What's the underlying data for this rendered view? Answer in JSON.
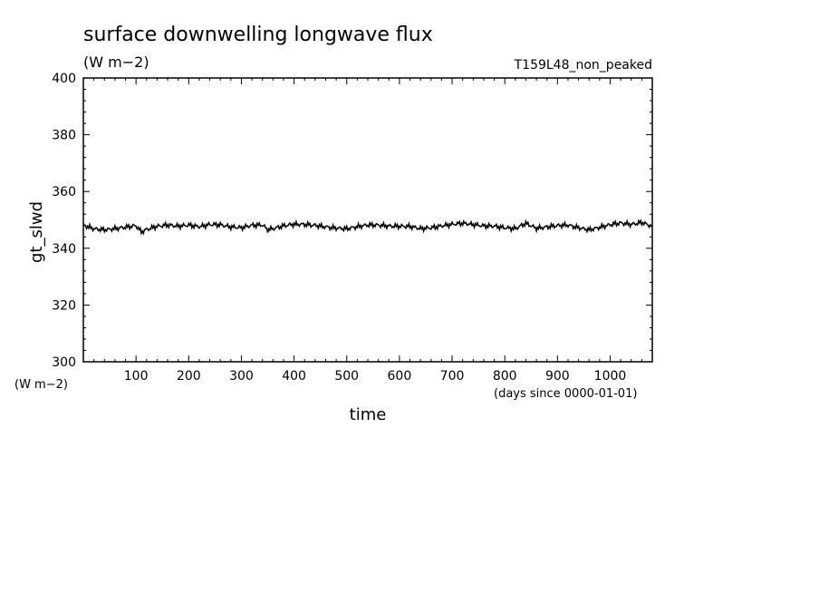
{
  "chart_data": {
    "type": "line",
    "title": "surface downwelling longwave flux",
    "subtitle": "(W m−2)",
    "run_label": "T159L48_non_peaked",
    "xlabel": "time",
    "xunits": "(days since 0000-01-01)",
    "ylabel": "gt_slwd",
    "yunits": "(W m−2)",
    "xlim": [
      0,
      1080
    ],
    "ylim": [
      300,
      400
    ],
    "xticks": [
      100,
      200,
      300,
      400,
      500,
      600,
      700,
      800,
      900,
      1000
    ],
    "yticks": [
      300,
      320,
      340,
      360,
      380,
      400
    ],
    "grid": false,
    "series": [
      {
        "x": [
          0,
          20,
          40,
          60,
          80,
          100,
          110,
          120,
          140,
          160,
          180,
          200,
          220,
          240,
          260,
          280,
          300,
          320,
          340,
          350,
          360,
          380,
          400,
          420,
          440,
          460,
          480,
          500,
          520,
          540,
          560,
          580,
          600,
          620,
          640,
          660,
          680,
          700,
          720,
          740,
          760,
          780,
          800,
          820,
          840,
          860,
          880,
          900,
          920,
          940,
          960,
          980,
          1000,
          1020,
          1040,
          1060,
          1080
        ],
        "y": [
          348,
          347,
          346.8,
          347.2,
          347.5,
          347.8,
          345.5,
          346.3,
          347.5,
          348.2,
          348,
          348.5,
          347.8,
          348.3,
          348,
          347.2,
          347.1,
          348.2,
          348.5,
          346.8,
          347.2,
          348,
          348.3,
          348.1,
          347.8,
          347.5,
          347.3,
          347.2,
          347.8,
          348.2,
          347.9,
          347.5,
          347.6,
          347.8,
          347.2,
          347.5,
          348,
          348.3,
          348.5,
          348.1,
          347.8,
          348,
          347.5,
          347.2,
          348.8,
          346.8,
          347.2,
          347.8,
          348.2,
          347.5,
          346.8,
          347.5,
          348.2,
          348.6,
          348.1,
          349,
          347.9
        ]
      }
    ]
  }
}
